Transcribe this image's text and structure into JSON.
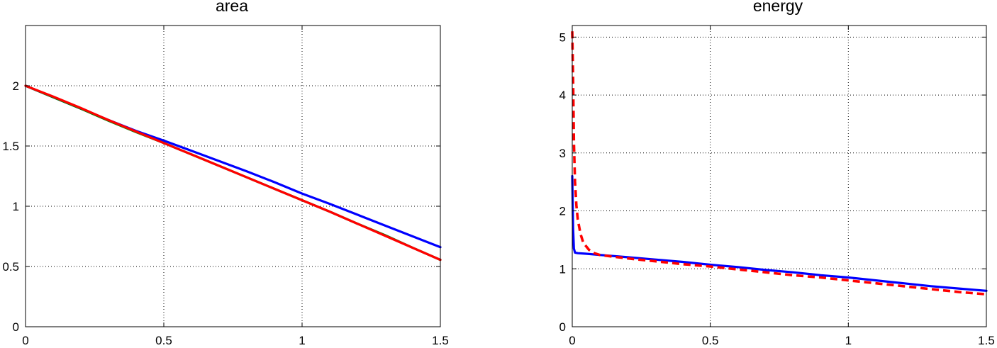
{
  "chart_data": [
    {
      "type": "line",
      "title": "area",
      "xlabel": "",
      "ylabel": "",
      "xlim": [
        0,
        1.5
      ],
      "ylim": [
        0,
        2.5
      ],
      "xticks": [
        0,
        0.5,
        1,
        1.5
      ],
      "xtick_labels": [
        "0",
        "0.5",
        "1",
        "1.5"
      ],
      "yticks": [
        0,
        0.5,
        1,
        1.5,
        2
      ],
      "ytick_labels": [
        "0",
        "0.5",
        "1",
        "1.5",
        "2"
      ],
      "grid": true,
      "legend": "none",
      "series": [
        {
          "color": "#0000ff",
          "style": "solid",
          "x": [
            0,
            0.1,
            0.2,
            0.3,
            0.4,
            0.5,
            0.6,
            0.7,
            0.8,
            0.9,
            1.0,
            1.1,
            1.2,
            1.3,
            1.4,
            1.5
          ],
          "y": [
            2.0,
            1.905,
            1.81,
            1.715,
            1.625,
            1.545,
            1.46,
            1.375,
            1.29,
            1.2,
            1.105,
            1.02,
            0.93,
            0.84,
            0.75,
            0.66
          ]
        },
        {
          "color": "#008000",
          "style": "solid",
          "x": [
            0,
            0.1,
            0.2,
            0.3,
            0.4,
            0.5,
            0.6,
            0.7,
            0.8,
            0.9,
            1.0,
            1.1,
            1.2,
            1.3,
            1.4,
            1.5
          ],
          "y": [
            2.0,
            1.905,
            1.81,
            1.71,
            1.615,
            1.525,
            1.43,
            1.335,
            1.24,
            1.145,
            1.05,
            0.955,
            0.855,
            0.76,
            0.655,
            0.555
          ]
        },
        {
          "color": "#ff0000",
          "style": "solid",
          "x": [
            0,
            0.1,
            0.2,
            0.3,
            0.4,
            0.5,
            0.6,
            0.7,
            0.8,
            0.9,
            1.0,
            1.1,
            1.2,
            1.3,
            1.4,
            1.5
          ],
          "y": [
            2.0,
            1.91,
            1.815,
            1.715,
            1.62,
            1.525,
            1.43,
            1.335,
            1.24,
            1.145,
            1.05,
            0.955,
            0.855,
            0.755,
            0.655,
            0.555
          ]
        }
      ]
    },
    {
      "type": "line",
      "title": "energy",
      "xlabel": "",
      "ylabel": "",
      "xlim": [
        0,
        1.5
      ],
      "ylim": [
        0,
        5.2
      ],
      "xticks": [
        0,
        0.5,
        1,
        1.5
      ],
      "xtick_labels": [
        "0",
        "0.5",
        "1",
        "1.5"
      ],
      "yticks": [
        0,
        1,
        2,
        3,
        4,
        5
      ],
      "ytick_labels": [
        "0",
        "1",
        "2",
        "3",
        "4",
        "5"
      ],
      "grid": true,
      "legend": "none",
      "series": [
        {
          "color": "#0000ff",
          "style": "solid",
          "x": [
            0,
            0.003,
            0.006,
            0.01,
            0.02,
            0.05,
            0.1,
            0.2,
            0.3,
            0.4,
            0.5,
            0.6,
            0.7,
            0.8,
            0.9,
            1.0,
            1.1,
            1.2,
            1.3,
            1.4,
            1.5
          ],
          "y": [
            2.6,
            1.7,
            1.35,
            1.28,
            1.27,
            1.26,
            1.24,
            1.2,
            1.16,
            1.12,
            1.07,
            1.03,
            0.98,
            0.94,
            0.89,
            0.85,
            0.8,
            0.75,
            0.7,
            0.66,
            0.62
          ]
        },
        {
          "color": "#ff0000",
          "style": "dashed",
          "x": [
            0,
            0.003,
            0.006,
            0.01,
            0.015,
            0.02,
            0.03,
            0.04,
            0.06,
            0.08,
            0.1,
            0.2,
            0.3,
            0.4,
            0.5,
            0.6,
            0.7,
            0.8,
            0.9,
            1.0,
            1.1,
            1.2,
            1.3,
            1.4,
            1.5
          ],
          "y": [
            5.1,
            4.3,
            3.2,
            2.5,
            2.1,
            1.85,
            1.6,
            1.45,
            1.33,
            1.27,
            1.24,
            1.18,
            1.13,
            1.08,
            1.04,
            0.99,
            0.94,
            0.89,
            0.85,
            0.8,
            0.75,
            0.7,
            0.65,
            0.6,
            0.56
          ]
        }
      ]
    }
  ]
}
